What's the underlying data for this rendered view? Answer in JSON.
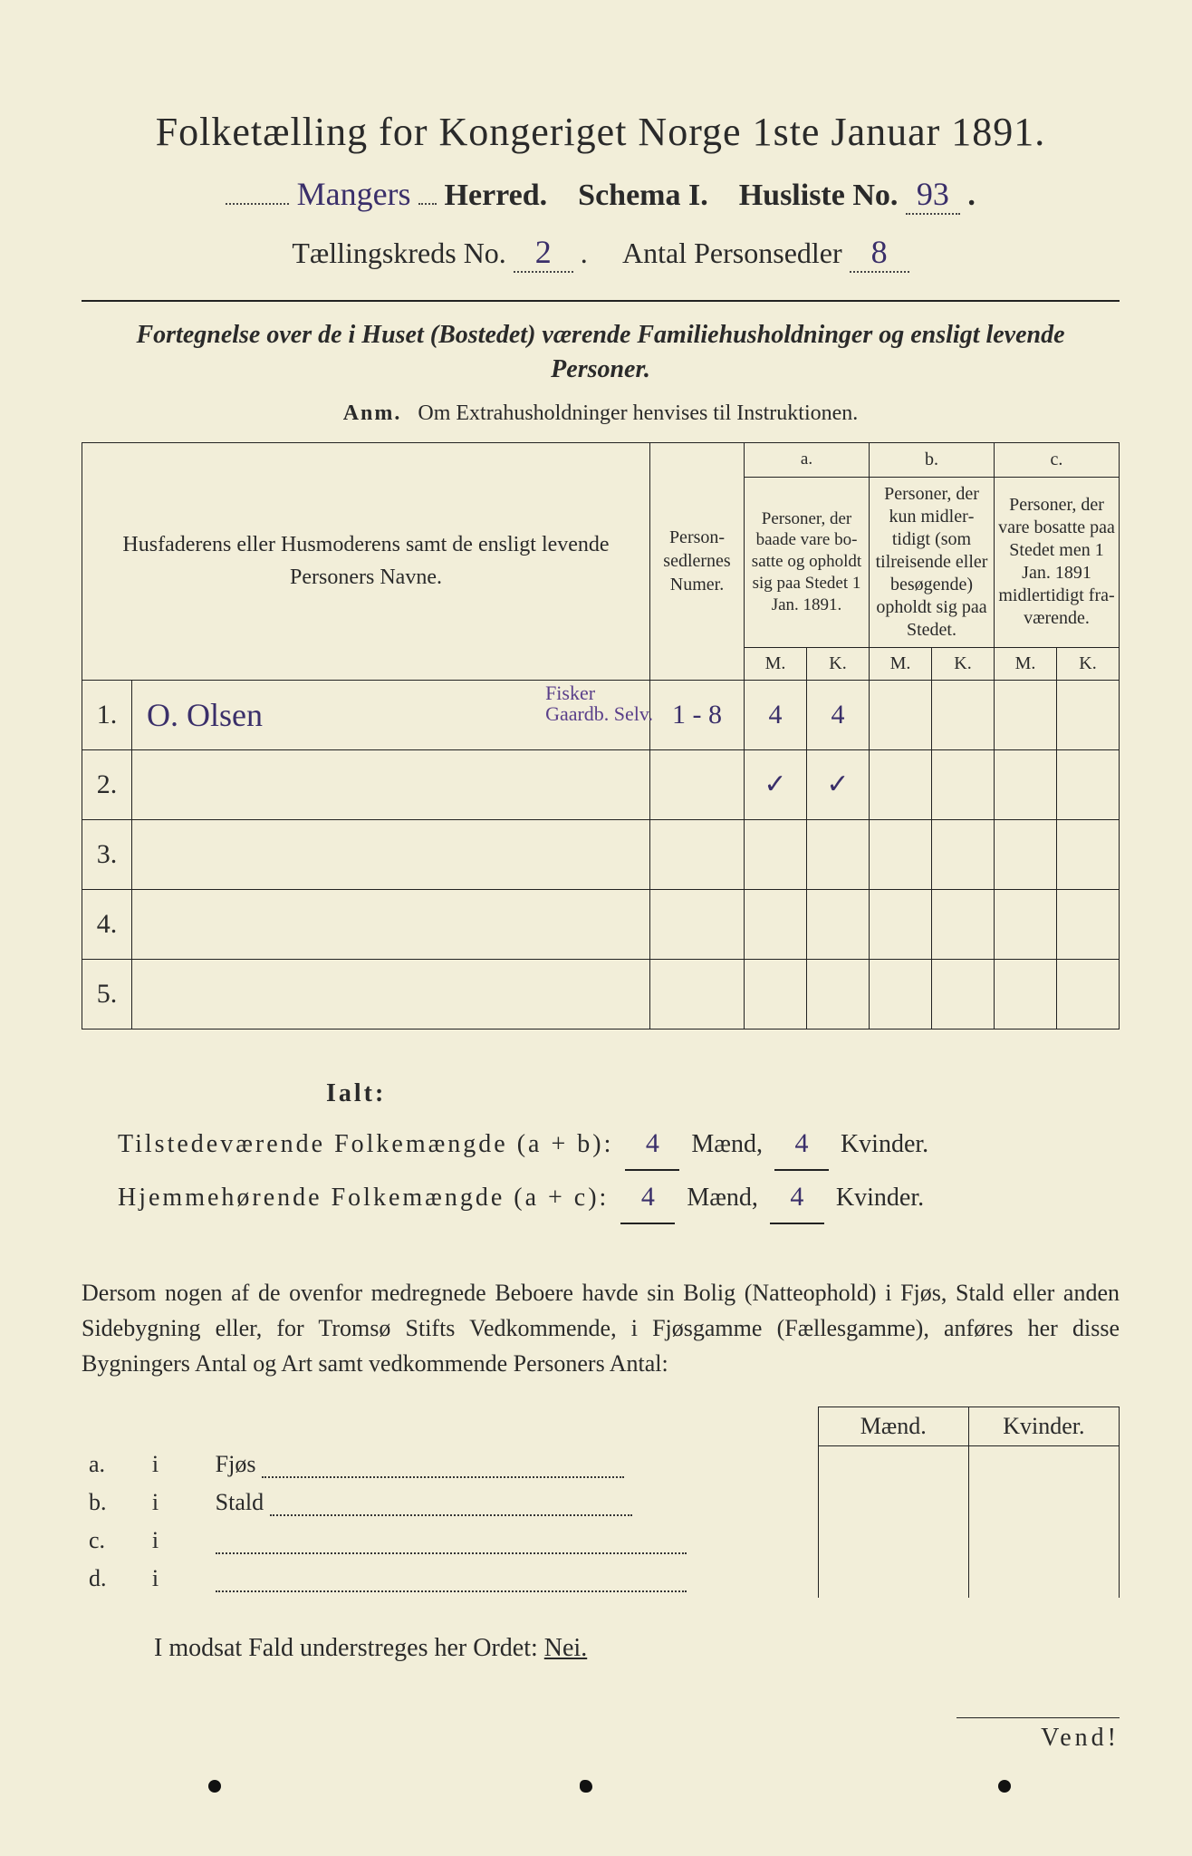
{
  "title": "Folketælling for Kongeriget Norge 1ste Januar 1891.",
  "line2": {
    "herred_handwritten": "Mangers",
    "herred_label": "Herred.",
    "schema_label": "Schema I.",
    "husliste_label": "Husliste No.",
    "husliste_no": "93",
    "period": "."
  },
  "line3": {
    "kreds_label": "Tællingskreds No.",
    "kreds_no": "2",
    "antal_label": "Antal Personsedler",
    "antal_no": "8"
  },
  "fortegnelse": "Fortegnelse over de i Huset (Bostedet) værende Familiehusholdninger og ensligt levende Personer.",
  "anm_bold": "Anm.",
  "anm_text": "Om Extrahusholdninger henvises til Instruktionen.",
  "table": {
    "head_names": "Husfaderens eller Husmode­rens samt de ensligt levende Personers Navne.",
    "head_numer": "Person­sedler­nes Numer.",
    "col_a_title": "a.",
    "col_a_text": "Personer, der baade vare bo­satte og opholdt sig paa Stedet 1 Jan. 1891.",
    "col_b_title": "b.",
    "col_b_text": "Personer, der kun midler­tidigt (som tilreisende eller besøgende) opholdt sig paa Stedet.",
    "col_c_title": "c.",
    "col_c_text": "Personer, der vare bosatte paa Stedet men 1 Jan. 1891 midler­tidigt fra­værende.",
    "mk_m": "M.",
    "mk_k": "K.",
    "rows": [
      {
        "n": "1.",
        "name": "O. Olsen",
        "numer": "1 - 8",
        "a_m": "4",
        "a_k": "4",
        "b_m": "",
        "b_k": "",
        "c_m": "",
        "c_k": "",
        "note": "Fisker\nGaardb. Selv."
      },
      {
        "n": "2.",
        "name": "",
        "numer": "",
        "a_m": "✓",
        "a_k": "✓",
        "b_m": "",
        "b_k": "",
        "c_m": "",
        "c_k": "",
        "note": ""
      },
      {
        "n": "3.",
        "name": "",
        "numer": "",
        "a_m": "",
        "a_k": "",
        "b_m": "",
        "b_k": "",
        "c_m": "",
        "c_k": "",
        "note": ""
      },
      {
        "n": "4.",
        "name": "",
        "numer": "",
        "a_m": "",
        "a_k": "",
        "b_m": "",
        "b_k": "",
        "c_m": "",
        "c_k": "",
        "note": ""
      },
      {
        "n": "5.",
        "name": "",
        "numer": "",
        "a_m": "",
        "a_k": "",
        "b_m": "",
        "b_k": "",
        "c_m": "",
        "c_k": "",
        "note": ""
      }
    ]
  },
  "totals": {
    "ialt": "Ialt:",
    "tilstede_label": "Tilstedeværende Folkemængde (a + b):",
    "hjemme_label": "Hjemmehørende Folkemængde (a + c):",
    "maend": "Mænd,",
    "kvinder": "Kvinder.",
    "tilstede_m": "4",
    "tilstede_k": "4",
    "hjemme_m": "4",
    "hjemme_k": "4"
  },
  "para": "Dersom nogen af de ovenfor medregnede Beboere havde sin Bolig (Natte­ophold) i Fjøs, Stald eller anden Sidebygning eller, for Tromsø Stifts Ved­kommende, i Fjøsgamme (Fællesgamme), anføres her disse Bygningers Antal og Art samt vedkommende Personers Antal:",
  "lower": {
    "head_m": "Mænd.",
    "head_k": "Kvinder.",
    "rows": [
      {
        "k": "a.",
        "i": "i",
        "label": "Fjøs"
      },
      {
        "k": "b.",
        "i": "i",
        "label": "Stald"
      },
      {
        "k": "c.",
        "i": "i",
        "label": ""
      },
      {
        "k": "d.",
        "i": "i",
        "label": ""
      }
    ]
  },
  "nei_line": "I modsat Fald understreges her Ordet:",
  "nei_word": "Nei.",
  "vend": "Vend!"
}
